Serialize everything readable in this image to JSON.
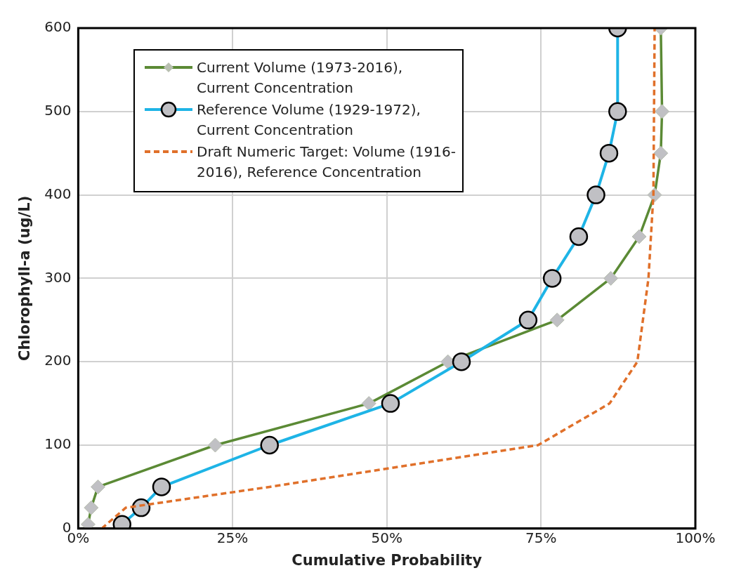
{
  "chart_data": {
    "type": "line",
    "xlabel": "Cumulative Probability",
    "ylabel": "Chlorophyll-a (ug/L)",
    "xlim": [
      0,
      100
    ],
    "xticks": [
      {
        "value": 0,
        "label": "0%"
      },
      {
        "value": 25,
        "label": "25%"
      },
      {
        "value": 50,
        "label": "50%"
      },
      {
        "value": 75,
        "label": "75%"
      },
      {
        "value": 100,
        "label": "100%"
      }
    ],
    "ylim": [
      0,
      600
    ],
    "yticks": [
      0,
      100,
      200,
      300,
      400,
      500,
      600
    ],
    "grid": true,
    "legend": "top left",
    "series": [
      {
        "name": "Current Volume (1973-2016), Current Concentration",
        "color": "#5b8a35",
        "marker": "diamond",
        "line_style": "solid",
        "x": [
          1.6,
          2.1,
          3.2,
          22.2,
          47.1,
          59.9,
          77.6,
          86.3,
          90.9,
          93.4,
          94.4,
          94.6,
          94.4
        ],
        "values": [
          5,
          25,
          50,
          100,
          150,
          200,
          250,
          300,
          350,
          400,
          450,
          500,
          600
        ]
      },
      {
        "name": "Reference Volume (1929-1972), Current Concentration",
        "color": "#1eb4e6",
        "marker": "circle",
        "line_style": "solid",
        "x": [
          7.1,
          10.2,
          13.5,
          31,
          50.6,
          62.1,
          72.9,
          76.8,
          81.1,
          83.9,
          86,
          87.4,
          87.4
        ],
        "values": [
          5,
          25,
          50,
          100,
          150,
          200,
          250,
          300,
          350,
          400,
          450,
          500,
          600
        ]
      },
      {
        "name": "Draft Numeric Target: Volume (1916-2016), Reference Concentration",
        "color": "#e0702a",
        "marker": "none",
        "line_style": "dashed",
        "x": [
          3.8,
          7.7,
          31,
          74.5,
          86.1,
          90.6,
          92.4,
          93.2,
          93.4
        ],
        "values": [
          0,
          25,
          50,
          100,
          150,
          200,
          300,
          400,
          600
        ]
      }
    ]
  }
}
